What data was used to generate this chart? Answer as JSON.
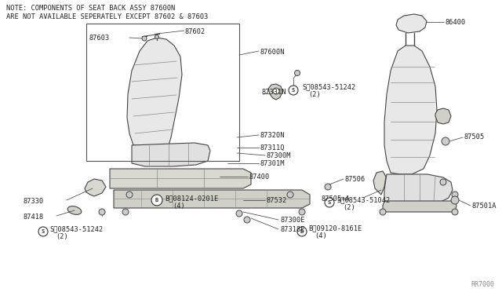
{
  "background_color": "#ffffff",
  "note_line1": "NOTE: COMPONENTS OF SEAT BACK ASSY 87600N",
  "note_line2": "ARE NOT AVAILABLE SEPERATELY EXCEPT 87602 & 87603",
  "line_color": "#444444",
  "text_color": "#222222",
  "watermark": "RR7000",
  "fig_width": 6.4,
  "fig_height": 3.72,
  "dpi": 100
}
